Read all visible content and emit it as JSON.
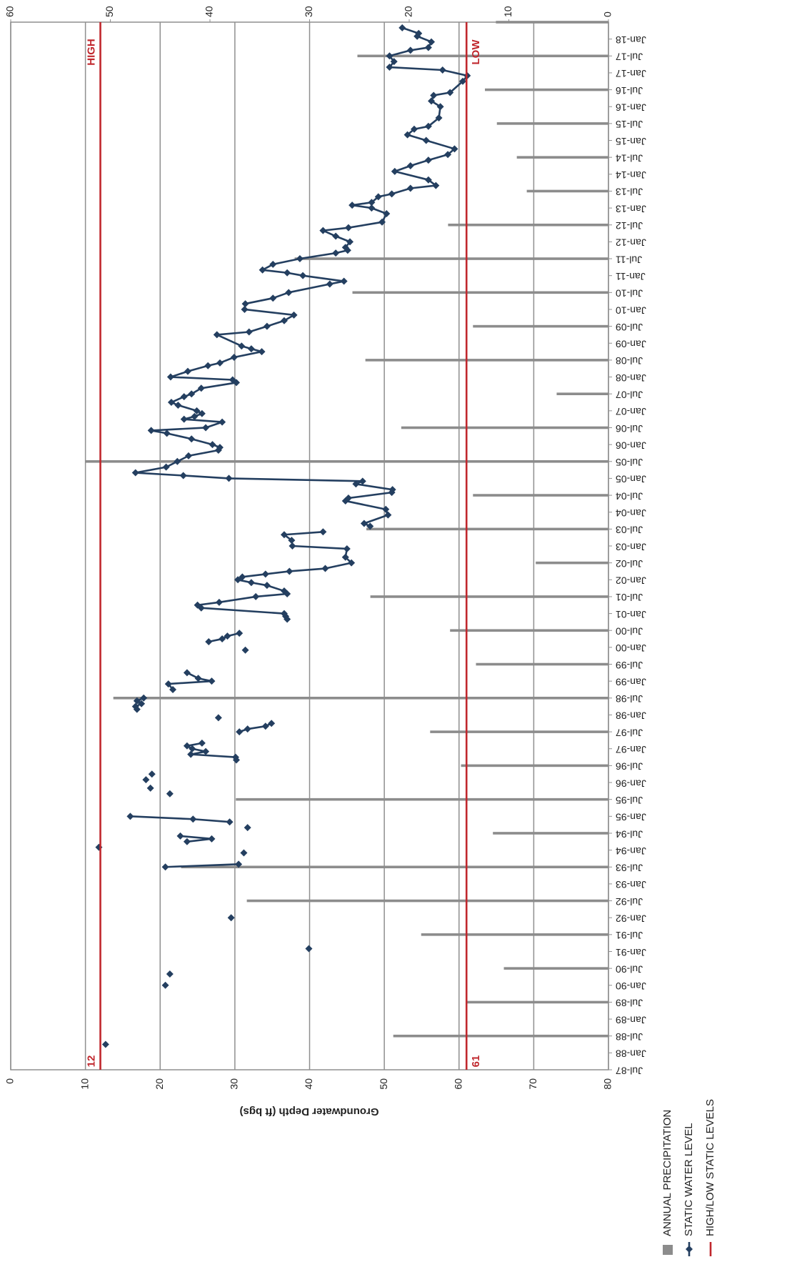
{
  "chart_data": {
    "type": "bar-line",
    "y_label": "Groundwater Depth (ft bgs)",
    "ylim": [
      0,
      80
    ],
    "yticks": [
      0,
      10,
      20,
      30,
      40,
      50,
      60,
      70,
      80
    ],
    "y2lim": [
      0,
      60
    ],
    "y2ticks": [
      0,
      10,
      20,
      30,
      40,
      50,
      60
    ],
    "y_inverted": true,
    "grid": true,
    "xlim": [
      "1987-07",
      "2018-07"
    ],
    "xticks": [
      {
        "value": "1987-07",
        "label": "Jul-87"
      },
      {
        "value": "1988-01",
        "label": "Jan-88"
      },
      {
        "value": "1988-07",
        "label": "Jul-88"
      },
      {
        "value": "1989-01",
        "label": "Jan-89"
      },
      {
        "value": "1989-07",
        "label": "Jul-89"
      },
      {
        "value": "1990-01",
        "label": "Jan-90"
      },
      {
        "value": "1990-07",
        "label": "Jul-90"
      },
      {
        "value": "1991-01",
        "label": "Jan-91"
      },
      {
        "value": "1991-07",
        "label": "Jul-91"
      },
      {
        "value": "1992-01",
        "label": "Jan-92"
      },
      {
        "value": "1992-07",
        "label": "Jul-92"
      },
      {
        "value": "1993-01",
        "label": "Jan-93"
      },
      {
        "value": "1993-07",
        "label": "Jul-93"
      },
      {
        "value": "1994-01",
        "label": "Jan-94"
      },
      {
        "value": "1994-07",
        "label": "Jul-94"
      },
      {
        "value": "1995-01",
        "label": "Jan-95"
      },
      {
        "value": "1995-07",
        "label": "Jul-95"
      },
      {
        "value": "1996-01",
        "label": "Jan-96"
      },
      {
        "value": "1996-07",
        "label": "Jul-96"
      },
      {
        "value": "1997-01",
        "label": "Jan-97"
      },
      {
        "value": "1997-07",
        "label": "Jul-97"
      },
      {
        "value": "1998-01",
        "label": "Jan-98"
      },
      {
        "value": "1998-07",
        "label": "Jul-98"
      },
      {
        "value": "1999-01",
        "label": "Jan-99"
      },
      {
        "value": "1999-07",
        "label": "Jul-99"
      },
      {
        "value": "2000-01",
        "label": "Jan-00"
      },
      {
        "value": "2000-07",
        "label": "Jul-00"
      },
      {
        "value": "2001-01",
        "label": "Jan-01"
      },
      {
        "value": "2001-07",
        "label": "Jul-01"
      },
      {
        "value": "2002-01",
        "label": "Jan-02"
      },
      {
        "value": "2002-07",
        "label": "Jul-02"
      },
      {
        "value": "2003-01",
        "label": "Jan-03"
      },
      {
        "value": "2003-07",
        "label": "Jul-03"
      },
      {
        "value": "2004-01",
        "label": "Jan-04"
      },
      {
        "value": "2004-07",
        "label": "Jul-04"
      },
      {
        "value": "2005-01",
        "label": "Jan-05"
      },
      {
        "value": "2005-07",
        "label": "Jul-05"
      },
      {
        "value": "2006-01",
        "label": "Jan-06"
      },
      {
        "value": "2006-07",
        "label": "Jul-06"
      },
      {
        "value": "2007-01",
        "label": "Jan-07"
      },
      {
        "value": "2007-07",
        "label": "Jul-07"
      },
      {
        "value": "2008-01",
        "label": "Jan-08"
      },
      {
        "value": "2008-07",
        "label": "Jul-08"
      },
      {
        "value": "2009-01",
        "label": "Jan-09"
      },
      {
        "value": "2009-07",
        "label": "Jul-09"
      },
      {
        "value": "2010-01",
        "label": "Jan-10"
      },
      {
        "value": "2010-07",
        "label": "Jul-10"
      },
      {
        "value": "2011-01",
        "label": "Jan-11"
      },
      {
        "value": "2011-07",
        "label": "Jul-11"
      },
      {
        "value": "2012-01",
        "label": "Jan-12"
      },
      {
        "value": "2012-07",
        "label": "Jul-12"
      },
      {
        "value": "2013-01",
        "label": "Jan-13"
      },
      {
        "value": "2013-07",
        "label": "Jul-13"
      },
      {
        "value": "2014-01",
        "label": "Jan-14"
      },
      {
        "value": "2014-07",
        "label": "Jul-14"
      },
      {
        "value": "2015-01",
        "label": "Jan-15"
      },
      {
        "value": "2015-07",
        "label": "Jul-15"
      },
      {
        "value": "2016-01",
        "label": "Jan-16"
      },
      {
        "value": "2016-07",
        "label": "Jul-16"
      },
      {
        "value": "2017-01",
        "label": "Jan-17"
      },
      {
        "value": "2017-07",
        "label": "Jul-17"
      },
      {
        "value": "2018-01",
        "label": "Jan-18"
      }
    ],
    "series": [
      {
        "name": "ANNUAL PRECIPITATION",
        "type": "bar",
        "axis": "y2",
        "color": "#8c8c8c",
        "x": [
          "1988-07",
          "1989-07",
          "1990-07",
          "1991-07",
          "1992-07",
          "1993-07",
          "1994-07",
          "1995-07",
          "1996-07",
          "1997-07",
          "1998-07",
          "1999-07",
          "2000-07",
          "2001-07",
          "2002-07",
          "2003-07",
          "2004-07",
          "2005-07",
          "2006-07",
          "2007-07",
          "2008-07",
          "2009-07",
          "2010-07",
          "2011-07",
          "2012-07",
          "2013-07",
          "2014-07",
          "2015-07",
          "2016-07",
          "2017-07",
          "2018-07"
        ],
        "values": [
          21.6,
          14.3,
          10.5,
          18.8,
          36.3,
          42.9,
          11.6,
          37.4,
          14.8,
          17.9,
          49.7,
          13.3,
          15.9,
          23.9,
          7.3,
          24.3,
          13.6,
          52.5,
          20.8,
          5.2,
          24.4,
          13.6,
          25.7,
          31.5,
          16.1,
          8.2,
          9.2,
          11.2,
          12.4,
          25.2,
          11.3
        ]
      },
      {
        "name": "STATIC WATER LEVEL",
        "type": "line",
        "color": "#243f60",
        "x": [
          "1988-04",
          null,
          "1990-01",
          null,
          "1990-05",
          null,
          "1991-02",
          null,
          "1992-01",
          null,
          "1993-07",
          "1993-08",
          null,
          "1993-12",
          null,
          "1994-02",
          null,
          "1994-04",
          "1994-05",
          "1994-06",
          null,
          "1994-09",
          null,
          "1994-11",
          "1994-12",
          "1995-01",
          null,
          "1995-09",
          null,
          "1995-11",
          null,
          "1996-02",
          null,
          "1996-04",
          null,
          "1996-09",
          "1996-10",
          "1996-11",
          "1996-12",
          "1997-01",
          "1997-02",
          "1997-03",
          null,
          "1997-07",
          "1997-08",
          "1997-09",
          "1997-10",
          null,
          "1997-12",
          null,
          "1998-03",
          "1998-04",
          "1998-05",
          "1998-06",
          "1998-07",
          null,
          "1998-10",
          "1998-12",
          "1999-01",
          "1999-02",
          "1999-04",
          null,
          "1999-12",
          null,
          "2000-03",
          "2000-04",
          "2000-05",
          "2000-06",
          null,
          "2000-11",
          "2000-12",
          "2001-01",
          "2001-03",
          "2001-04",
          "2001-05",
          "2001-07",
          "2001-08",
          "2001-09",
          "2001-11",
          "2001-12",
          "2002-01",
          "2002-02",
          "2002-03",
          "2002-04",
          "2002-05",
          "2002-07",
          "2002-09",
          "2002-12",
          "2003-01",
          "2003-03",
          "2003-05",
          "2003-06",
          null,
          "2003-08",
          "2003-09",
          "2003-12",
          "2004-02",
          "2004-05",
          "2004-06",
          "2004-08",
          "2004-09",
          "2004-11",
          "2004-12",
          "2005-01",
          "2005-02",
          "2005-03",
          "2005-05",
          "2005-07",
          "2005-09",
          "2005-11",
          "2005-12",
          "2006-01",
          "2006-03",
          "2006-05",
          "2006-06",
          "2006-07",
          "2006-09",
          "2006-10",
          "2006-11",
          "2006-12",
          "2007-01",
          "2007-03",
          "2007-04",
          "2007-06",
          "2007-07",
          "2007-09",
          "2007-11",
          "2007-12",
          "2008-01",
          "2008-03",
          "2008-05",
          "2008-06",
          "2008-08",
          "2008-10",
          "2008-11",
          "2008-12",
          "2009-04",
          "2009-05",
          "2009-07",
          "2009-09",
          "2009-11",
          "2010-01",
          "2010-03",
          "2010-05",
          "2010-07",
          "2010-10",
          "2010-11",
          "2011-01",
          "2011-02",
          "2011-03",
          "2011-05",
          "2011-07",
          "2011-09",
          "2011-10",
          "2011-11",
          "2012-01",
          "2012-03",
          "2012-05",
          "2012-06",
          "2012-08",
          "2012-11",
          "2013-01",
          "2013-02",
          "2013-03",
          "2013-05",
          "2013-06",
          "2013-08",
          "2013-09",
          "2013-11",
          "2014-02",
          "2014-04",
          "2014-06",
          "2014-08",
          "2014-10",
          "2015-01",
          "2015-03",
          "2015-05",
          "2015-06",
          "2015-09",
          "2016-01",
          "2016-03",
          "2016-05",
          "2016-06",
          "2016-10",
          "2016-12",
          "2017-02",
          "2017-03",
          "2017-05",
          "2017-07",
          "2017-09",
          "2017-10",
          "2017-12",
          "2018-02",
          "2018-03",
          "2018-05"
        ],
        "values": [
          12.7,
          null,
          20.7,
          null,
          21.3,
          null,
          39.9,
          null,
          29.5,
          null,
          20.7,
          30.5,
          null,
          31.2,
          null,
          11.8,
          null,
          23.6,
          26.9,
          22.7,
          null,
          31.7,
          null,
          29.3,
          24.4,
          16.0,
          null,
          21.3,
          null,
          18.7,
          null,
          18.1,
          null,
          18.9,
          null,
          30.2,
          30.1,
          24.1,
          26.1,
          24.3,
          23.6,
          25.6,
          null,
          30.6,
          31.7,
          34.1,
          34.9,
          null,
          27.8,
          null,
          16.9,
          16.7,
          17.5,
          16.9,
          17.8,
          null,
          21.7,
          21.1,
          26.9,
          25.1,
          23.6,
          null,
          31.4,
          null,
          26.5,
          28.3,
          29.0,
          30.6,
          null,
          37.0,
          36.8,
          36.6,
          25.5,
          25.0,
          27.9,
          32.8,
          37.0,
          36.6,
          34.3,
          32.2,
          30.4,
          31.0,
          34.1,
          37.3,
          42.1,
          45.6,
          44.8,
          45.0,
          37.7,
          37.6,
          36.6,
          41.8,
          null,
          48.1,
          47.3,
          50.5,
          50.2,
          44.8,
          45.2,
          51.0,
          51.1,
          46.2,
          47.1,
          29.2,
          23.1,
          16.7,
          20.8,
          22.3,
          23.8,
          27.8,
          28.0,
          27.0,
          24.2,
          20.9,
          18.8,
          26.1,
          28.3,
          23.2,
          24.6,
          25.6,
          24.9,
          22.4,
          21.5,
          23.2,
          24.2,
          25.5,
          30.2,
          29.7,
          21.4,
          23.7,
          26.4,
          28.0,
          29.9,
          33.6,
          32.2,
          30.9,
          27.6,
          31.9,
          34.3,
          36.6,
          37.9,
          31.3,
          31.4,
          35.1,
          37.2,
          42.7,
          44.6,
          39.1,
          37.0,
          33.7,
          35.1,
          38.7,
          43.5,
          45.1,
          44.8,
          45.4,
          43.5,
          41.8,
          45.2,
          49.7,
          50.3,
          48.3,
          45.7,
          48.3,
          49.2,
          51.0,
          53.5,
          56.9,
          55.9,
          51.4,
          53.5,
          55.9,
          58.5,
          59.4,
          55.6,
          53.1,
          54.0,
          55.9,
          57.3,
          57.5,
          56.3,
          56.6,
          58.8,
          60.5,
          61.1,
          57.8,
          50.7,
          51.3,
          50.7,
          53.5,
          55.9,
          56.3,
          54.4,
          54.6,
          52.4
        ]
      }
    ],
    "reference_legend": "HIGH/LOW STATIC LEVELS",
    "reference_color": "#c0272d",
    "reference_lines": [
      {
        "name": "HIGH",
        "value": 12
      },
      {
        "name": "LOW",
        "value": 61
      }
    ],
    "legend": "bottom-left"
  }
}
